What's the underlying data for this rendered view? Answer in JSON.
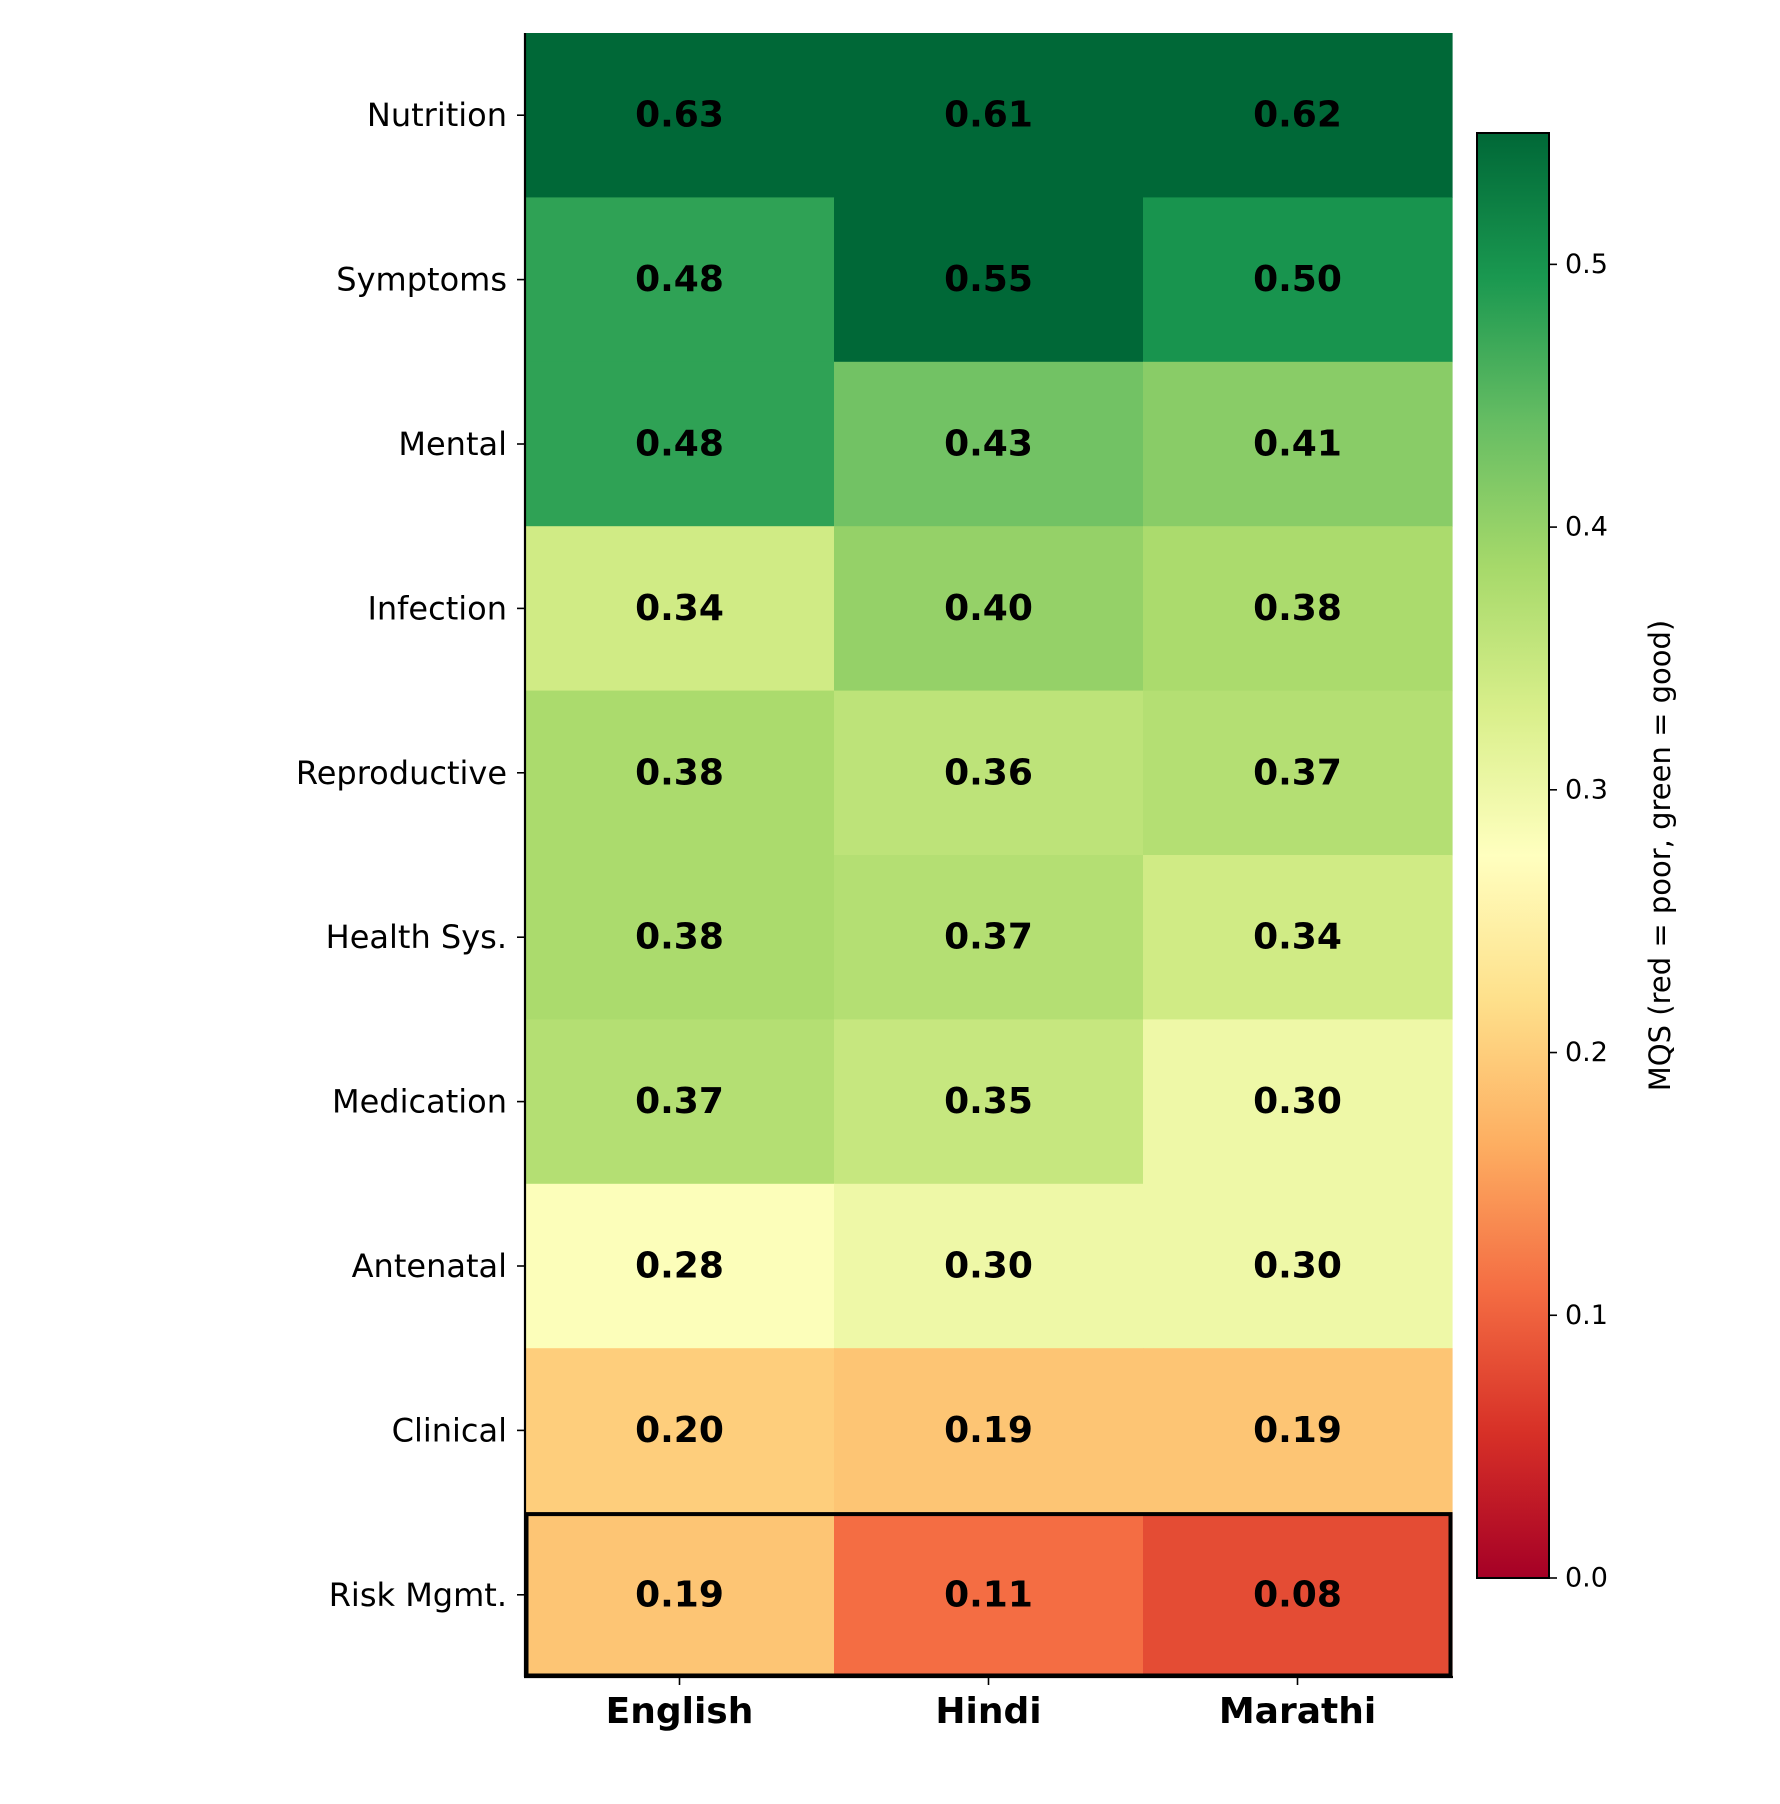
{
  "chart_data": {
    "type": "heatmap",
    "rows": [
      "Nutrition",
      "Symptoms",
      "Mental",
      "Infection",
      "Reproductive",
      "Health Sys.",
      "Medication",
      "Antenatal",
      "Clinical",
      "Risk Mgmt."
    ],
    "columns": [
      "English",
      "Hindi",
      "Marathi"
    ],
    "values": [
      [
        0.63,
        0.61,
        0.62
      ],
      [
        0.48,
        0.55,
        0.5
      ],
      [
        0.48,
        0.43,
        0.41
      ],
      [
        0.34,
        0.4,
        0.38
      ],
      [
        0.38,
        0.36,
        0.37
      ],
      [
        0.38,
        0.37,
        0.34
      ],
      [
        0.37,
        0.35,
        0.3
      ],
      [
        0.28,
        0.3,
        0.3
      ],
      [
        0.2,
        0.19,
        0.19
      ],
      [
        0.19,
        0.11,
        0.08
      ]
    ],
    "colorbar": {
      "label": "MQS  (red = poor, green = good)",
      "range": [
        0.0,
        0.55
      ],
      "ticks": [
        "0.0",
        "0.1",
        "0.2",
        "0.3",
        "0.4",
        "0.5"
      ],
      "colormap": "RdYlGn"
    },
    "highlighted_row": "Risk Mgmt."
  }
}
